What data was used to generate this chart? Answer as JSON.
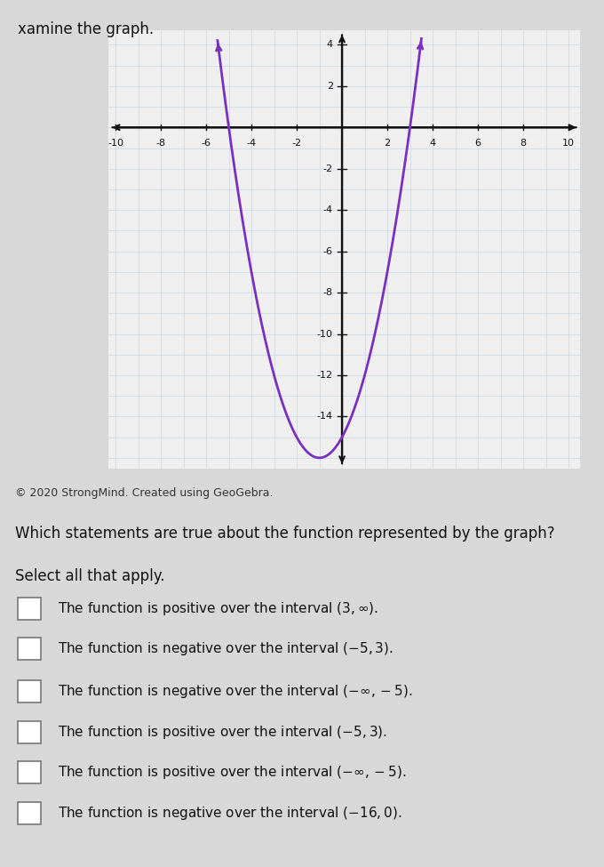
{
  "title": "xamine the graph.",
  "copyright_text": "© 2020 StrongMind. Created using GeoGebra.",
  "question_text": "Which statements are true about the function represented by the graph?",
  "instruction_text": "Select all that apply.",
  "statements": [
    "The function is positive over the interval $(3, \\infty)$.",
    "The function is negative over the interval $(-5, 3)$.",
    "The function is negative over the interval $(-\\infty, -5)$.",
    "The function is positive over the interval $(-5, 3)$.",
    "The function is positive over the interval $(-\\infty, -5)$.",
    "The function is negative over the interval $(-16, 0)$."
  ],
  "curve_color": "#7B2FBE",
  "grid_minor_color": "#C8D8E8",
  "grid_major_color": "#B8C8DC",
  "axis_color": "#111111",
  "page_bg_color": "#D8D8D8",
  "plot_bg_color": "#EFEFEF",
  "text_bg_color": "#D8D8D8",
  "x_min": -10,
  "x_max": 10,
  "y_min": -16,
  "y_max": 4,
  "x_ticks": [
    -10,
    -8,
    -6,
    -4,
    -2,
    2,
    4,
    6,
    8,
    10
  ],
  "y_ticks": [
    -14,
    -12,
    -10,
    -8,
    -6,
    -4,
    -2,
    2,
    4
  ],
  "root1": -5,
  "root2": 3,
  "curve_linewidth": 2.0,
  "curve_clip_y_top": 4.3
}
